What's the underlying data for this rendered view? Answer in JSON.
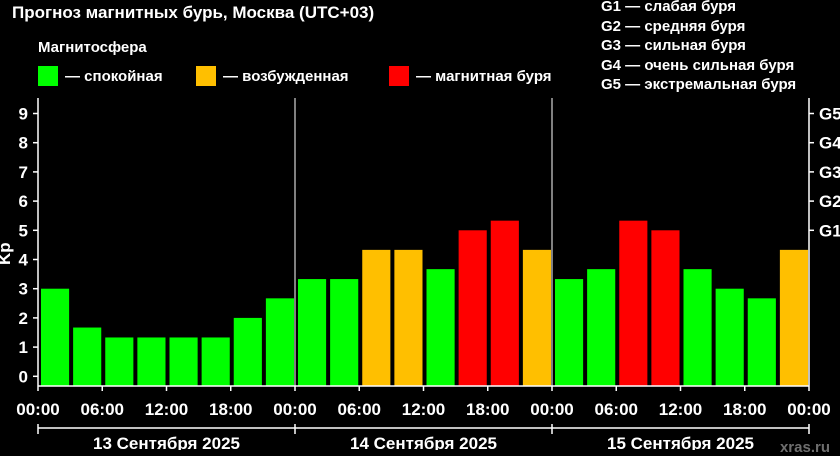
{
  "title": "Прогноз магнитных бурь, Москва (UTC+03)",
  "subtitle": "Магнитосфера",
  "legend": [
    {
      "label": "— спокойная",
      "color": "#00ff00"
    },
    {
      "label": "— возбужденная",
      "color": "#ffbf00"
    },
    {
      "label": "— магнитная буря",
      "color": "#ff0000"
    }
  ],
  "storm_levels": [
    "G1 — слабая буря",
    "G2 — средняя буря",
    "G3 — сильная буря",
    "G4 — очень сильная буря",
    "G5 — экстремальная буря"
  ],
  "watermark": "xras.ru",
  "chart_data": {
    "type": "bar",
    "ylabel": "Kp",
    "ylim": [
      0,
      9
    ],
    "yticks": [
      "0",
      "1",
      "2",
      "3",
      "4",
      "5",
      "6",
      "7",
      "8",
      "9"
    ],
    "right_ticks": [
      {
        "value": 5,
        "label": "G1"
      },
      {
        "value": 6,
        "label": "G2"
      },
      {
        "value": 7,
        "label": "G3"
      },
      {
        "value": 8,
        "label": "G4"
      },
      {
        "value": 9,
        "label": "G5"
      }
    ],
    "xtick_labels": [
      "00:00",
      "06:00",
      "12:00",
      "18:00",
      "00:00",
      "06:00",
      "12:00",
      "18:00",
      "00:00",
      "06:00",
      "12:00",
      "18:00",
      "00:00"
    ],
    "days": [
      "13 Сентября 2025",
      "14 Сентября 2025",
      "15 Сентября 2025"
    ],
    "colors": {
      "quiet": "#00ff00",
      "active": "#ffbf00",
      "storm": "#ff0000"
    },
    "values": [
      3.0,
      1.67,
      1.33,
      1.33,
      1.33,
      1.33,
      2.0,
      2.67,
      3.33,
      3.33,
      4.33,
      4.33,
      3.67,
      5.0,
      5.33,
      4.33,
      3.33,
      3.67,
      5.33,
      5.0,
      3.67,
      3.0,
      2.67,
      4.33
    ],
    "grid": false
  }
}
